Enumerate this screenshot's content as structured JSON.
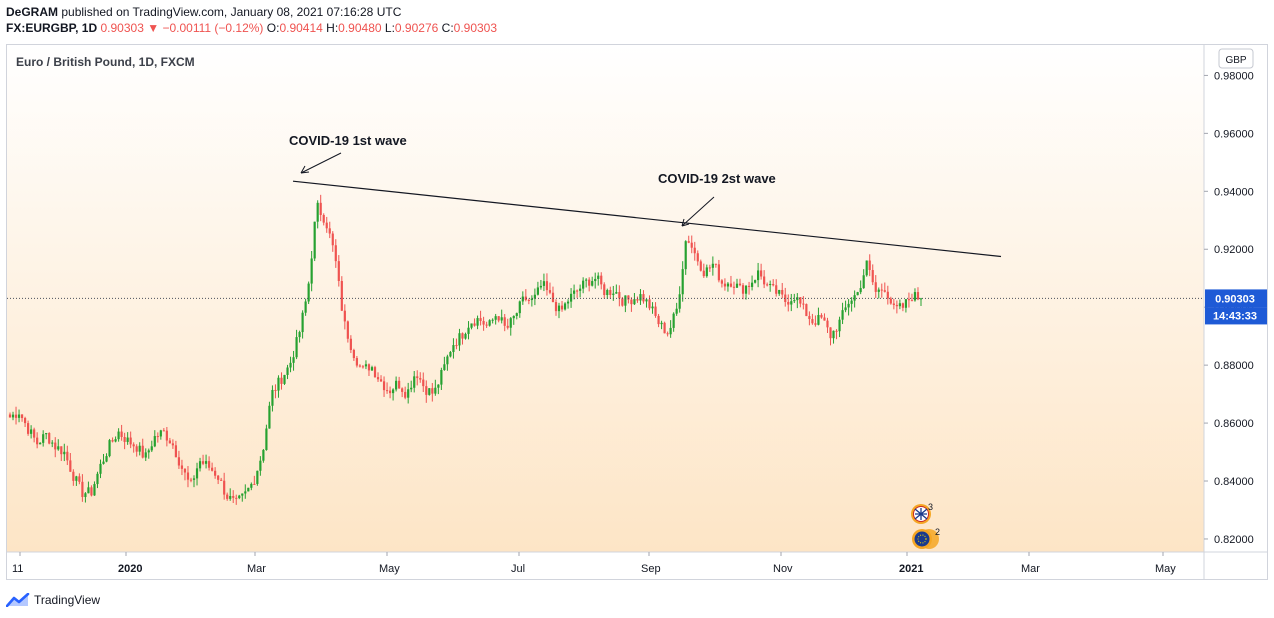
{
  "header": {
    "publisher": "DeGRAM",
    "published_text": "published on TradingView.com, January 08, 2021 07:16:28 UTC",
    "symbol": "FX:EURGBP, 1D",
    "last_price": "0.90303",
    "change_arrow": "▼",
    "change_text": "−0.00111 (−0.12%)",
    "o_label": "O:",
    "o_value": "0.90414",
    "h_label": "H:",
    "h_value": "0.90480",
    "l_label": "L:",
    "l_value": "0.90276",
    "c_label": "C:",
    "c_value": "0.90303"
  },
  "footer": {
    "brand": "TradingView"
  },
  "colors": {
    "up": "#26a130",
    "down": "#ef5350",
    "price_label_bg": "#1e5ad6",
    "bg_top": "#ffffff",
    "bg_bottom": "#fde5c6"
  },
  "chart_data": {
    "type": "candlestick",
    "title": "Euro / British Pound, 1D, FXCM",
    "currency_label": "GBP",
    "ylim": [
      0.8155,
      0.9905
    ],
    "y_ticks": [
      "0.98000",
      "0.96000",
      "0.94000",
      "0.92000",
      "0.90000",
      "0.88000",
      "0.86000",
      "0.84000",
      "0.82000"
    ],
    "x_labels": [
      "11",
      "2020",
      "Mar",
      "May",
      "Jul",
      "Sep",
      "Nov",
      "2021",
      "Mar",
      "May"
    ],
    "last_price_label": "0.90303",
    "countdown_label": "14:43:33",
    "last_price": 0.90303,
    "annotations": [
      {
        "text": "COVID-19 1st wave"
      },
      {
        "text": "COVID-19 2st wave"
      }
    ],
    "trendline": {
      "from": 0.9435,
      "to": 0.9175
    },
    "event_badges": [
      {
        "count": "3"
      },
      {
        "count": "2"
      }
    ],
    "price_path": [
      0.862,
      0.864,
      0.858,
      0.853,
      0.856,
      0.852,
      0.85,
      0.842,
      0.836,
      0.836,
      0.845,
      0.852,
      0.857,
      0.854,
      0.852,
      0.848,
      0.855,
      0.857,
      0.853,
      0.845,
      0.838,
      0.847,
      0.845,
      0.842,
      0.835,
      0.832,
      0.835,
      0.84,
      0.85,
      0.87,
      0.875,
      0.88,
      0.89,
      0.905,
      0.935,
      0.93,
      0.918,
      0.895,
      0.885,
      0.878,
      0.88,
      0.875,
      0.871,
      0.874,
      0.87,
      0.878,
      0.872,
      0.87,
      0.878,
      0.887,
      0.89,
      0.895,
      0.896,
      0.893,
      0.898,
      0.892,
      0.897,
      0.903,
      0.902,
      0.908,
      0.903,
      0.898,
      0.903,
      0.906,
      0.909,
      0.91,
      0.905,
      0.906,
      0.902,
      0.903,
      0.904,
      0.9,
      0.894,
      0.891,
      0.9,
      0.925,
      0.918,
      0.912,
      0.915,
      0.908,
      0.909,
      0.906,
      0.908,
      0.912,
      0.907,
      0.905,
      0.902,
      0.904,
      0.899,
      0.895,
      0.896,
      0.89,
      0.895,
      0.902,
      0.905,
      0.915,
      0.905,
      0.907,
      0.899,
      0.9,
      0.904,
      0.903
    ]
  }
}
